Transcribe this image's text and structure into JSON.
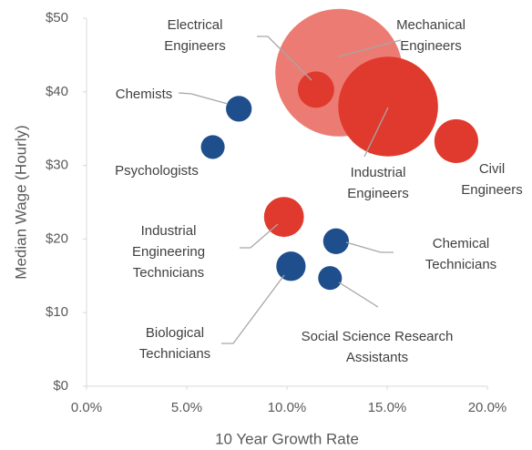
{
  "chart_data": {
    "type": "bubble",
    "xlabel": "10 Year Growth Rate",
    "ylabel": "Median Wage (Hourly)",
    "xlim": [
      0,
      20
    ],
    "ylim": [
      0,
      50
    ],
    "xticks": [
      {
        "value": 0,
        "label": "0.0%"
      },
      {
        "value": 5,
        "label": "5.0%"
      },
      {
        "value": 10,
        "label": "10.0%"
      },
      {
        "value": 15,
        "label": "15.0%"
      },
      {
        "value": 20,
        "label": "20.0%"
      }
    ],
    "yticks": [
      {
        "value": 0,
        "label": "$0"
      },
      {
        "value": 10,
        "label": "$10"
      },
      {
        "value": 20,
        "label": "$20"
      },
      {
        "value": 30,
        "label": "$30"
      },
      {
        "value": 40,
        "label": "$40"
      },
      {
        "value": 50,
        "label": "$50"
      }
    ],
    "points": [
      {
        "label": [
          "Mechanical",
          "Engineers"
        ],
        "x": 12.6,
        "y": 42.6,
        "size": 49,
        "color": "#ec7c73"
      },
      {
        "label": [
          "Electrical",
          "Engineers"
        ],
        "x": 11.45,
        "y": 40.3,
        "size": 4,
        "color": "#e03a2e"
      },
      {
        "label": [
          "Industrial",
          "Engineers"
        ],
        "x": 15.05,
        "y": 38.0,
        "size": 30,
        "color": "#e03a2e"
      },
      {
        "label": [
          "Civil",
          "Engineers"
        ],
        "x": 18.45,
        "y": 33.3,
        "size": 5.8,
        "color": "#e03a2e"
      },
      {
        "label": [
          "Chemists"
        ],
        "x": 7.6,
        "y": 37.7,
        "size": 2,
        "color": "#1f4e8c"
      },
      {
        "label": [
          "Psychologists"
        ],
        "x": 6.3,
        "y": 32.5,
        "size": 1.7,
        "color": "#1f4e8c"
      },
      {
        "label": [
          "Industrial",
          "Engineering",
          "Technicians"
        ],
        "x": 9.85,
        "y": 23.0,
        "size": 4.8,
        "color": "#e03a2e"
      },
      {
        "label": [
          "Chemical",
          "Technicians"
        ],
        "x": 12.45,
        "y": 19.7,
        "size": 2,
        "color": "#1f4e8c"
      },
      {
        "label": [
          "Biological",
          "Technicians"
        ],
        "x": 10.2,
        "y": 16.3,
        "size": 2.6,
        "color": "#1f4e8c"
      },
      {
        "label": [
          "Social Science Research",
          "Assistants"
        ],
        "x": 12.15,
        "y": 14.7,
        "size": 1.7,
        "color": "#1f4e8c"
      }
    ]
  }
}
